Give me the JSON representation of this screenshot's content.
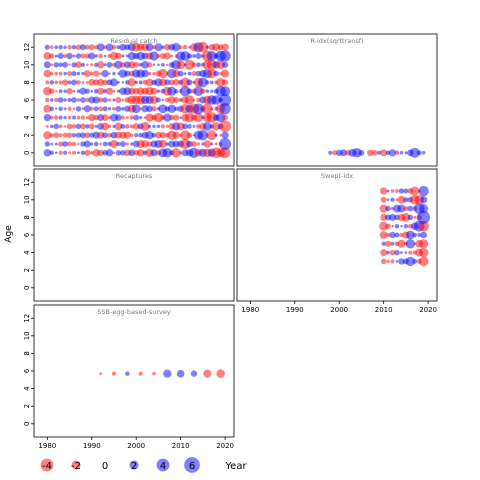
{
  "chart_data": {
    "type": "scatter",
    "ylabel": "Age",
    "xlabel": "Year",
    "xlim": [
      1977,
      2022
    ],
    "ylim": [
      -1.5,
      13.5
    ],
    "x_ticks": [
      1980,
      1990,
      2000,
      2010,
      2020
    ],
    "y_ticks": [
      0,
      2,
      4,
      6,
      8,
      10,
      12
    ],
    "colors": {
      "positive": "#0000ff",
      "negative": "#ff0000"
    },
    "legend": {
      "placement": "bottom-left",
      "entries": [
        {
          "label": "-4",
          "value": -4
        },
        {
          "label": "-2",
          "value": -2
        },
        {
          "label": "0",
          "value": 0
        },
        {
          "label": "2",
          "value": 2
        },
        {
          "label": "4",
          "value": 4
        },
        {
          "label": "6",
          "value": 6
        }
      ]
    },
    "panels": [
      {
        "title": "Residual catch",
        "data_rule": "grid",
        "years": [
          1980,
          2020
        ],
        "ages": [
          0,
          12
        ],
        "seed": 11
      },
      {
        "title": "R-idx(sqrttransf)",
        "data_rule": "explicit",
        "points": [
          [
            1998,
            0,
            0.4
          ],
          [
            1999,
            0,
            -0.6
          ],
          [
            2000,
            0,
            1.0
          ],
          [
            2001,
            0,
            1.2
          ],
          [
            2002,
            0,
            -0.8
          ],
          [
            2003,
            0,
            1.5
          ],
          [
            2004,
            0,
            2.2
          ],
          [
            2005,
            0,
            0.8
          ],
          [
            2007,
            0,
            -1.0
          ],
          [
            2008,
            0,
            -0.8
          ],
          [
            2009,
            0,
            0.4
          ],
          [
            2010,
            0,
            -1.2
          ],
          [
            2011,
            0,
            0.5
          ],
          [
            2012,
            0,
            1.3
          ],
          [
            2013,
            0,
            -0.5
          ],
          [
            2014,
            0,
            0.3
          ],
          [
            2015,
            0,
            0.2
          ],
          [
            2016,
            0,
            1.1
          ],
          [
            2017,
            0,
            2.5
          ],
          [
            2018,
            0,
            0.6
          ],
          [
            2019,
            0,
            0.3
          ]
        ]
      },
      {
        "title": "Recaptures",
        "data_rule": "explicit",
        "points": []
      },
      {
        "title": "Swept-idx",
        "data_rule": "grid",
        "years": [
          2010,
          2019
        ],
        "ages": [
          3,
          11
        ],
        "seed": 29
      },
      {
        "title": "SSB-egg-based-survey",
        "data_rule": "explicit",
        "points": [
          [
            1992,
            5.7,
            -0.2
          ],
          [
            1995,
            5.7,
            -0.4
          ],
          [
            1998,
            5.7,
            0.5
          ],
          [
            2001,
            5.7,
            -0.4
          ],
          [
            2004,
            5.7,
            -0.3
          ],
          [
            2007,
            5.7,
            1.7
          ],
          [
            2010,
            5.7,
            1.4
          ],
          [
            2013,
            5.7,
            1.0
          ],
          [
            2016,
            5.7,
            -1.6
          ],
          [
            2019,
            5.7,
            -1.8
          ]
        ]
      }
    ]
  }
}
